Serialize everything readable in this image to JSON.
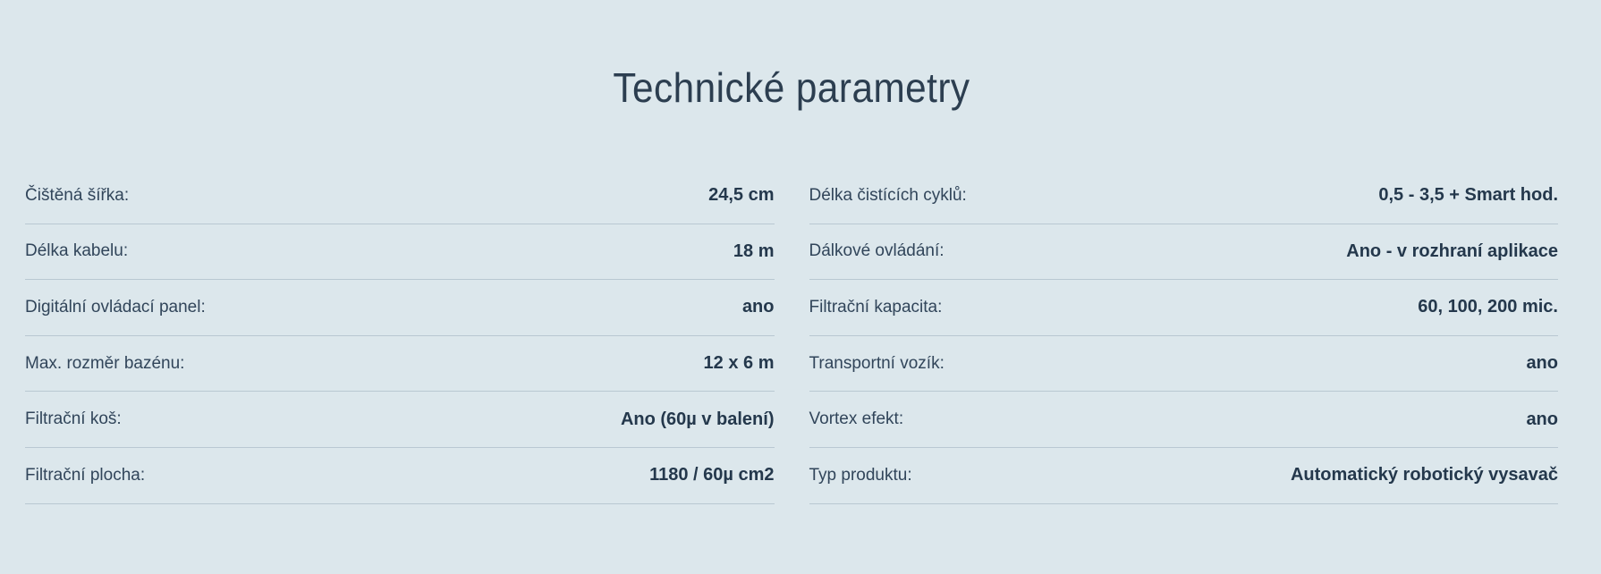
{
  "page": {
    "title": "Technické parametry",
    "colors": {
      "background": "#dce7ec",
      "divider": "#b9c8d2",
      "heading_text": "#2c3e50",
      "label_text": "#31455a",
      "value_text": "#24384c"
    }
  },
  "parameters": {
    "left": [
      {
        "label": "Čištěná šířka:",
        "value": "24,5 cm"
      },
      {
        "label": "Délka kabelu:",
        "value": "18 m"
      },
      {
        "label": "Digitální ovládací panel:",
        "value": "ano"
      },
      {
        "label": "Max. rozměr bazénu:",
        "value": "12 x 6 m"
      },
      {
        "label": "Filtrační koš:",
        "value": "Ano (60µ v balení)"
      },
      {
        "label": "Filtrační plocha:",
        "value": "1180 / 60µ cm2"
      }
    ],
    "right": [
      {
        "label": "Délka čistících cyklů:",
        "value": "0,5 - 3,5 + Smart hod."
      },
      {
        "label": "Dálkové ovládání:",
        "value": "Ano - v rozhraní aplikace"
      },
      {
        "label": "Filtrační kapacita:",
        "value": "60, 100, 200 mic."
      },
      {
        "label": "Transportní vozík:",
        "value": "ano"
      },
      {
        "label": "Vortex efekt:",
        "value": "ano"
      },
      {
        "label": "Typ produktu:",
        "value": "Automatický robotický vysavač"
      }
    ]
  }
}
